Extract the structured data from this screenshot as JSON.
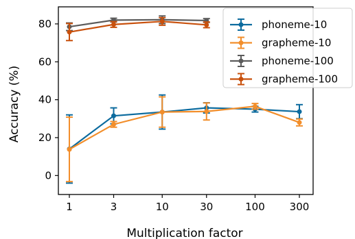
{
  "chart_data": {
    "type": "line",
    "xlabel": "Multiplication factor",
    "ylabel": "Accuracy (%)",
    "x_scale": "log",
    "x": [
      1,
      3,
      10,
      30,
      100,
      300
    ],
    "x_tick_labels": [
      "1",
      "3",
      "10",
      "30",
      "100",
      "300"
    ],
    "y_ticks": [
      0,
      20,
      40,
      60,
      80
    ],
    "y_tick_labels": [
      "0",
      "20",
      "40",
      "60",
      "80"
    ],
    "ylim": [
      -10,
      89
    ],
    "legend_position": "top-right",
    "grid": false,
    "series": [
      {
        "name": "phoneme-10",
        "color": "#0C6B9E",
        "values": [
          14,
          31.5,
          33.5,
          35.7,
          35,
          33.7
        ],
        "errors": [
          18,
          4.2,
          9,
          2.7,
          1.5,
          3.7
        ]
      },
      {
        "name": "grapheme-10",
        "color": "#F28E2B",
        "values": [
          13.8,
          27,
          33.5,
          33.8,
          36.5,
          28
        ],
        "errors": [
          17,
          1.5,
          8,
          4.5,
          1.5,
          1.8
        ]
      },
      {
        "name": "phoneme-100",
        "color": "#5B5B5B",
        "values": [
          78.5,
          82,
          82.2,
          81.8,
          null,
          null
        ],
        "errors": [
          2,
          1,
          2,
          1,
          null,
          null
        ]
      },
      {
        "name": "grapheme-100",
        "color": "#C8500C",
        "values": [
          75.7,
          79.7,
          81.3,
          79.5,
          null,
          null
        ],
        "errors": [
          4.5,
          1.5,
          2,
          1.5,
          null,
          null
        ]
      }
    ]
  }
}
